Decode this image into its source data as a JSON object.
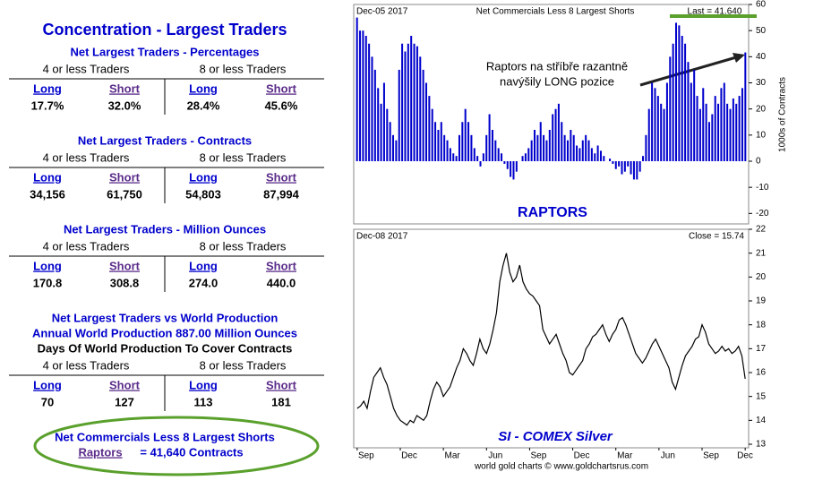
{
  "panel": {
    "title": "Concentration - Largest Traders",
    "groups": [
      "4 or less Traders",
      "8 or less Traders"
    ],
    "sections": [
      {
        "titles": [
          "Net Largest Traders - Percentages"
        ],
        "cols": [
          "Long",
          "Short",
          "Long",
          "Short"
        ],
        "values": [
          "17.7%",
          "32.0%",
          "28.4%",
          "45.6%"
        ]
      },
      {
        "titles": [
          "Net Largest Traders - Contracts"
        ],
        "cols": [
          "Long",
          "Short",
          "Long",
          "Short"
        ],
        "values": [
          "34,156",
          "61,750",
          "54,803",
          "87,994"
        ]
      },
      {
        "titles": [
          "Net Largest Traders - Million Ounces"
        ],
        "cols": [
          "Long",
          "Short",
          "Long",
          "Short"
        ],
        "values": [
          "170.8",
          "308.8",
          "274.0",
          "440.0"
        ]
      },
      {
        "titles": [
          "Net Largest Traders vs World Production",
          "Annual World Production 887.00 Million Ounces",
          "Days Of World Production To Cover Contracts"
        ],
        "cols": [
          "Long",
          "Short",
          "Long",
          "Short"
        ],
        "values": [
          "70",
          "127",
          "113",
          "181"
        ]
      }
    ],
    "footer": {
      "line1": "Net Commercials Less 8 Largest Shorts",
      "link": "Raptors",
      "rest": "= 41,640 Contracts"
    }
  },
  "chart_data": [
    {
      "type": "bar",
      "title": "Net Commercials Less 8 Largest Shorts",
      "date": "Dec-05 2017",
      "last": "Last = 41.640",
      "label": "RAPTORS",
      "annotation": [
        "Raptors na stříbře razantně",
        "navýšily LONG pozice"
      ],
      "ylabel": "1000s of Contracts",
      "color": "#0000cc",
      "values": [
        55,
        50,
        50,
        48,
        45,
        40,
        35,
        28,
        22,
        30,
        20,
        15,
        10,
        8,
        35,
        45,
        42,
        45,
        48,
        45,
        44,
        40,
        35,
        30,
        25,
        20,
        15,
        12,
        15,
        10,
        8,
        5,
        3,
        2,
        10,
        15,
        20,
        15,
        10,
        5,
        2,
        -2,
        3,
        10,
        18,
        12,
        8,
        5,
        3,
        -1,
        -3,
        -6,
        -7,
        -4,
        0,
        2,
        3,
        5,
        8,
        12,
        10,
        15,
        10,
        8,
        12,
        18,
        20,
        22,
        15,
        10,
        8,
        12,
        10,
        6,
        5,
        8,
        10,
        8,
        5,
        3,
        6,
        4,
        2,
        0,
        1,
        -1,
        -3,
        -2,
        -5,
        -4,
        -2,
        -5,
        -7,
        -7,
        -4,
        2,
        10,
        20,
        30,
        28,
        25,
        22,
        20,
        30,
        40,
        45,
        53,
        52,
        48,
        45,
        38,
        30,
        35,
        25,
        20,
        28,
        22,
        15,
        18,
        25,
        22,
        28,
        30,
        22,
        20,
        24,
        22,
        25,
        28,
        41.64
      ],
      "ylim": [
        -24,
        60
      ],
      "yticks": [
        -20,
        -10,
        0,
        10,
        20,
        30,
        40,
        50,
        60
      ]
    },
    {
      "type": "line",
      "title": "SI  -  COMEX Silver",
      "date": "Dec-08 2017",
      "close": "Close = 15.74",
      "source": "world gold charts © www.goldchartsrus.com",
      "color": "#000000",
      "categories": [
        "Sep",
        null,
        null,
        null,
        null,
        null,
        null,
        null,
        null,
        null,
        null,
        null,
        null,
        "Dec",
        null,
        null,
        null,
        null,
        null,
        null,
        null,
        null,
        null,
        null,
        null,
        null,
        "Mar",
        null,
        null,
        null,
        null,
        null,
        null,
        null,
        null,
        null,
        null,
        null,
        null,
        "Jun",
        null,
        null,
        null,
        null,
        null,
        null,
        null,
        null,
        null,
        null,
        null,
        null,
        "Sep",
        null,
        null,
        null,
        null,
        null,
        null,
        null,
        null,
        null,
        null,
        null,
        null,
        "Dec",
        null,
        null,
        null,
        null,
        null,
        null,
        null,
        null,
        null,
        null,
        null,
        null,
        "Mar",
        null,
        null,
        null,
        null,
        null,
        null,
        null,
        null,
        null,
        null,
        null,
        null,
        "Jun",
        null,
        null,
        null,
        null,
        null,
        null,
        null,
        null,
        null,
        null,
        null,
        null,
        "Sep",
        null,
        null,
        null,
        null,
        null,
        null,
        null,
        null,
        null,
        null,
        null,
        null,
        "Dec"
      ],
      "values": [
        14.5,
        14.6,
        14.8,
        14.5,
        15.2,
        15.8,
        16.0,
        16.2,
        15.8,
        15.5,
        15.0,
        14.5,
        14.2,
        14.0,
        13.9,
        13.8,
        14.0,
        13.9,
        14.2,
        14.1,
        14.0,
        14.2,
        14.8,
        15.3,
        15.6,
        15.4,
        15.0,
        15.2,
        15.4,
        15.8,
        16.2,
        16.5,
        17.0,
        16.8,
        16.5,
        16.3,
        16.8,
        17.4,
        17.0,
        16.8,
        17.2,
        17.8,
        18.5,
        19.8,
        20.5,
        21.0,
        20.2,
        19.8,
        20.0,
        20.5,
        19.8,
        19.5,
        19.3,
        19.2,
        19.0,
        18.8,
        17.8,
        17.5,
        17.2,
        17.4,
        17.6,
        17.2,
        16.8,
        16.5,
        16.0,
        15.9,
        16.1,
        16.3,
        16.5,
        17.0,
        17.2,
        17.5,
        17.6,
        17.8,
        18.0,
        17.6,
        17.3,
        17.6,
        17.8,
        18.2,
        18.3,
        18.0,
        17.6,
        17.2,
        16.8,
        16.6,
        16.4,
        16.6,
        16.9,
        17.2,
        17.4,
        17.1,
        16.8,
        16.5,
        16.2,
        15.6,
        15.3,
        15.8,
        16.3,
        16.7,
        16.9,
        17.1,
        17.4,
        17.5,
        18.0,
        17.7,
        17.2,
        17.0,
        16.8,
        16.9,
        17.1,
        16.9,
        17.0,
        16.8,
        16.9,
        17.1,
        16.7,
        15.74
      ],
      "ylim": [
        12.85,
        22
      ],
      "yticks": [
        13,
        14,
        15,
        16,
        17,
        18,
        19,
        20,
        21,
        22
      ]
    }
  ]
}
